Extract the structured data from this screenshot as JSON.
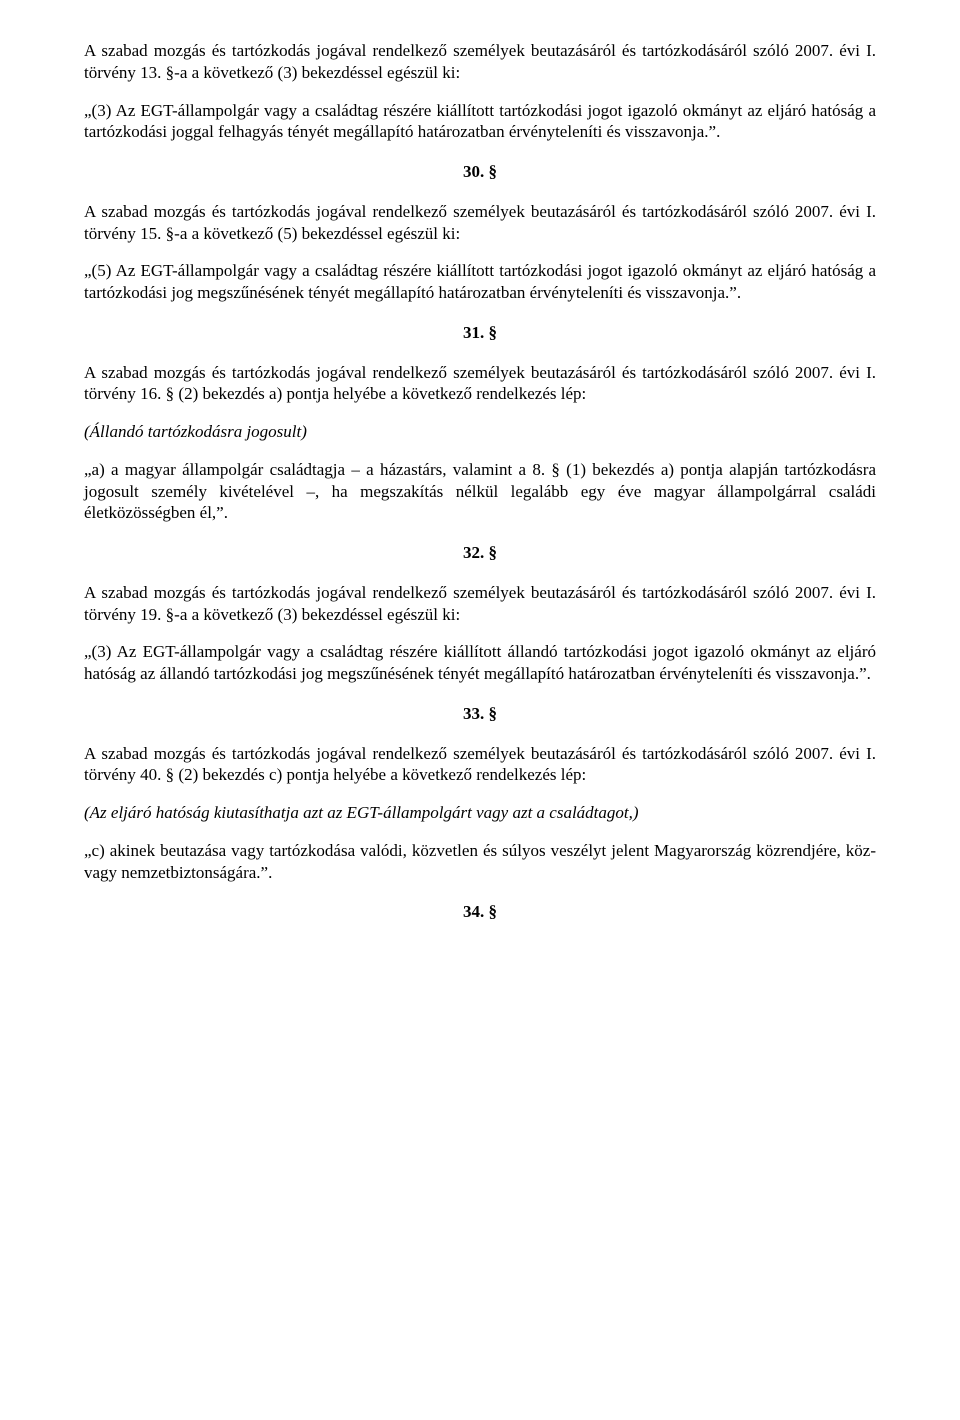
{
  "p1": "A szabad mozgás és tartózkodás jogával rendelkező személyek beutazásáról és tartózkodásáról szóló 2007. évi I. törvény 13. §-a a következő (3) bekezdéssel egészül ki:",
  "p2": "„(3) Az EGT-állampolgár vagy a családtag részére kiállított tartózkodási jogot igazoló okmányt az eljáró hatóság a tartózkodási joggal felhagyás tényét megállapító határozatban érvényteleníti és visszavonja.”.",
  "s30": "30. §",
  "p3": "A szabad mozgás és tartózkodás jogával rendelkező személyek beutazásáról és tartózkodásáról szóló 2007. évi I. törvény 15. §-a a következő (5) bekezdéssel egészül ki:",
  "p4": "„(5) Az EGT-állampolgár vagy a családtag részére kiállított tartózkodási jogot igazoló okmányt az eljáró hatóság a tartózkodási jog megszűnésének tényét megállapító határozatban érvényteleníti és visszavonja.”.",
  "s31": "31. §",
  "p5": "A szabad mozgás és tartózkodás jogával rendelkező személyek beutazásáról és tartózkodásáról szóló 2007. évi I. törvény 16. § (2) bekezdés a) pontja helyébe a következő rendelkezés lép:",
  "p6": "(Állandó tartózkodásra jogosult)",
  "p7": "„a) a magyar állampolgár családtagja – a házastárs, valamint a 8. § (1) bekezdés a) pontja alapján tartózkodásra jogosult személy kivételével –, ha megszakítás nélkül legalább egy éve magyar állampolgárral családi életközösségben él,”.",
  "s32": "32. §",
  "p8": "A szabad mozgás és tartózkodás jogával rendelkező személyek beutazásáról és tartózkodásáról szóló 2007. évi I. törvény 19. §-a a következő (3) bekezdéssel egészül ki:",
  "p9": "„(3) Az EGT-állampolgár vagy a családtag részére kiállított állandó tartózkodási jogot igazoló okmányt az eljáró hatóság az állandó tartózkodási jog megszűnésének tényét megállapító határozatban érvényteleníti és visszavonja.”.",
  "s33": "33. §",
  "p10": "A szabad mozgás és tartózkodás jogával rendelkező személyek beutazásáról és tartózkodásáról szóló 2007. évi I. törvény 40. § (2) bekezdés c) pontja helyébe a következő rendelkezés lép:",
  "p11": "(Az eljáró hatóság kiutasíthatja azt az EGT-állampolgárt vagy azt a családtagot,)",
  "p12": "„c) akinek beutazása vagy tartózkodása valódi, közvetlen és súlyos veszélyt jelent Magyarország közrendjére, köz- vagy nemzetbiztonságára.”.",
  "s34": "34. §"
}
